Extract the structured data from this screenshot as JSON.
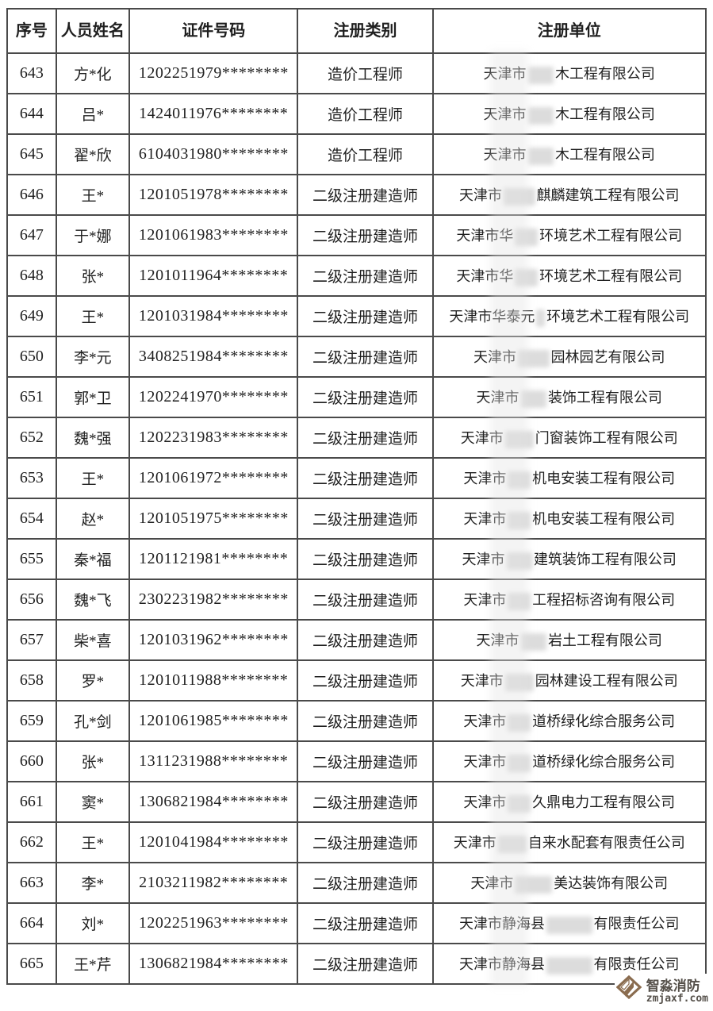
{
  "colors": {
    "table_border": "#4a4a4a",
    "text": "#1f1f1f",
    "blur_patch": "#dcdcdc",
    "watermark_logo": "#8a6c4f",
    "watermark_text": "#55504a",
    "background": "#ffffff"
  },
  "table": {
    "headers": [
      "序号",
      "人员姓名",
      "证件号码",
      "注册类别",
      "注册单位"
    ],
    "rows": [
      {
        "no": "643",
        "name": "方*化",
        "id": "1202251979********",
        "category": "造价工程师",
        "company_prefix": "天津市",
        "company_suffix": "木工程有限公司",
        "blur_em": 1.8
      },
      {
        "no": "644",
        "name": "吕*",
        "id": "1424011976********",
        "category": "造价工程师",
        "company_prefix": "天津市",
        "company_suffix": "木工程有限公司",
        "blur_em": 1.8
      },
      {
        "no": "645",
        "name": "翟*欣",
        "id": "6104031980********",
        "category": "造价工程师",
        "company_prefix": "天津市",
        "company_suffix": "木工程有限公司",
        "blur_em": 1.8
      },
      {
        "no": "646",
        "name": "王*",
        "id": "1201051978********",
        "category": "二级注册建造师",
        "company_prefix": "天津市",
        "company_suffix": "麒麟建筑工程有限公司",
        "blur_em": 2.2
      },
      {
        "no": "647",
        "name": "于*娜",
        "id": "1201061983********",
        "category": "二级注册建造师",
        "company_prefix": "天津市华",
        "company_suffix": "环境艺术工程有限公司",
        "blur_em": 1.6
      },
      {
        "no": "648",
        "name": "张*",
        "id": "1201011964********",
        "category": "二级注册建造师",
        "company_prefix": "天津市华",
        "company_suffix": "环境艺术工程有限公司",
        "blur_em": 1.6
      },
      {
        "no": "649",
        "name": "王*",
        "id": "1201031984********",
        "category": "二级注册建造师",
        "company_prefix": "天津市华泰元",
        "company_suffix": "环境艺术工程有限公司",
        "blur_em": 0.6
      },
      {
        "no": "650",
        "name": "李*元",
        "id": "3408251984********",
        "category": "二级注册建造师",
        "company_prefix": "天津市",
        "company_suffix": "园林园艺有限公司",
        "blur_em": 2.2
      },
      {
        "no": "651",
        "name": "郭*卫",
        "id": "1202241970********",
        "category": "二级注册建造师",
        "company_prefix": "天津市",
        "company_suffix": "装饰工程有限公司",
        "blur_em": 1.8
      },
      {
        "no": "652",
        "name": "魏*强",
        "id": "1202231983********",
        "category": "二级注册建造师",
        "company_prefix": "天津市",
        "company_suffix": "门窗装饰工程有限公司",
        "blur_em": 2.0
      },
      {
        "no": "653",
        "name": "王*",
        "id": "1201061972********",
        "category": "二级注册建造师",
        "company_prefix": "天津市",
        "company_suffix": "机电安装工程有限公司",
        "blur_em": 1.6
      },
      {
        "no": "654",
        "name": "赵*",
        "id": "1201051975********",
        "category": "二级注册建造师",
        "company_prefix": "天津市",
        "company_suffix": "机电安装工程有限公司",
        "blur_em": 1.6
      },
      {
        "no": "655",
        "name": "秦*福",
        "id": "1201121981********",
        "category": "二级注册建造师",
        "company_prefix": "天津市",
        "company_suffix": "建筑装饰工程有限公司",
        "blur_em": 1.8
      },
      {
        "no": "656",
        "name": "魏*飞",
        "id": "2302231982********",
        "category": "二级注册建造师",
        "company_prefix": "天津市",
        "company_suffix": "工程招标咨询有限公司",
        "blur_em": 1.6
      },
      {
        "no": "657",
        "name": "柴*喜",
        "id": "1201031962********",
        "category": "二级注册建造师",
        "company_prefix": "天津市",
        "company_suffix": "岩土工程有限公司",
        "blur_em": 1.8
      },
      {
        "no": "658",
        "name": "罗*",
        "id": "1201011988********",
        "category": "二级注册建造师",
        "company_prefix": "天津市",
        "company_suffix": "园林建设工程有限公司",
        "blur_em": 2.0
      },
      {
        "no": "659",
        "name": "孔*剑",
        "id": "1201061985********",
        "category": "二级注册建造师",
        "company_prefix": "天津市",
        "company_suffix": "道桥绿化综合服务公司",
        "blur_em": 1.6
      },
      {
        "no": "660",
        "name": "张*",
        "id": "1311231988********",
        "category": "二级注册建造师",
        "company_prefix": "天津市",
        "company_suffix": "道桥绿化综合服务公司",
        "blur_em": 1.6
      },
      {
        "no": "661",
        "name": "窦*",
        "id": "1306821984********",
        "category": "二级注册建造师",
        "company_prefix": "天津市",
        "company_suffix": "久鼎电力工程有限公司",
        "blur_em": 1.6
      },
      {
        "no": "662",
        "name": "王*",
        "id": "1201041984********",
        "category": "二级注册建造师",
        "company_prefix": "天津市",
        "company_suffix": "自来水配套有限责任公司",
        "blur_em": 2.0
      },
      {
        "no": "663",
        "name": "李*",
        "id": "2103211982********",
        "category": "二级注册建造师",
        "company_prefix": "天津市",
        "company_suffix": "美达装饰有限公司",
        "blur_em": 2.6
      },
      {
        "no": "664",
        "name": "刘*",
        "id": "1202251963********",
        "category": "二级注册建造师",
        "company_prefix": "天津市静海县",
        "company_suffix": "有限责任公司",
        "blur_em": 3.2
      },
      {
        "no": "665",
        "name": "王*芹",
        "id": "1306821984********",
        "category": "二级注册建造师",
        "company_prefix": "天津市静海县",
        "company_suffix": "有限责任公司",
        "blur_em": 3.2
      }
    ]
  },
  "watermark": {
    "title": "智淼消防",
    "site": "zmjaxf.com",
    "logo_icon": "diamond-arrow-logo"
  }
}
